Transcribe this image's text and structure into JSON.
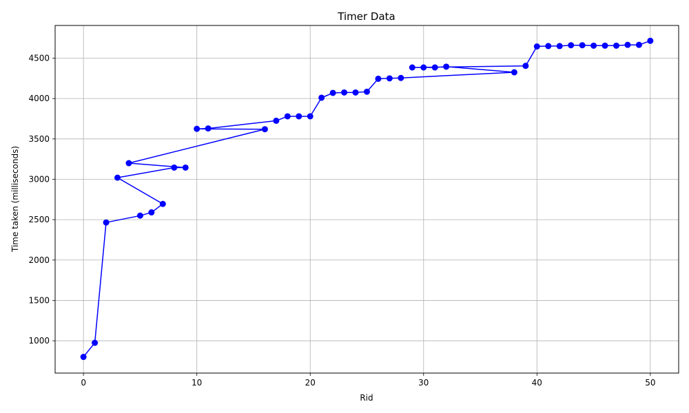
{
  "chart_data": {
    "type": "line",
    "title": "Timer Data",
    "xlabel": "Rid",
    "ylabel": "Time taken (milliseconds)",
    "xlim": [
      -2.5,
      52.5
    ],
    "ylim": [
      600,
      4905
    ],
    "xticks": [
      0,
      10,
      20,
      30,
      40,
      50
    ],
    "yticks": [
      1000,
      1500,
      2000,
      2500,
      3000,
      3500,
      4000,
      4500
    ],
    "grid": true,
    "color": "#0000ff",
    "marker": "circle",
    "series": [
      {
        "x": [
          0,
          1,
          2,
          5,
          6,
          7,
          3,
          8,
          9,
          4,
          16,
          10,
          11,
          17,
          18,
          19,
          20,
          21,
          22,
          23,
          24,
          25,
          26,
          27,
          28,
          38,
          32,
          31,
          30,
          29,
          39,
          40,
          41,
          42,
          43,
          44,
          45,
          46,
          47,
          48,
          49,
          50
        ],
        "y": [
          800,
          975,
          2465,
          2550,
          2590,
          2695,
          3020,
          3145,
          3145,
          3200,
          3620,
          3625,
          3630,
          3725,
          3780,
          3780,
          3780,
          4010,
          4070,
          4075,
          4075,
          4085,
          4245,
          4250,
          4255,
          4325,
          4395,
          4385,
          4385,
          4385,
          4405,
          4645,
          4650,
          4650,
          4660,
          4660,
          4655,
          4655,
          4655,
          4665,
          4665,
          4715
        ]
      }
    ]
  }
}
